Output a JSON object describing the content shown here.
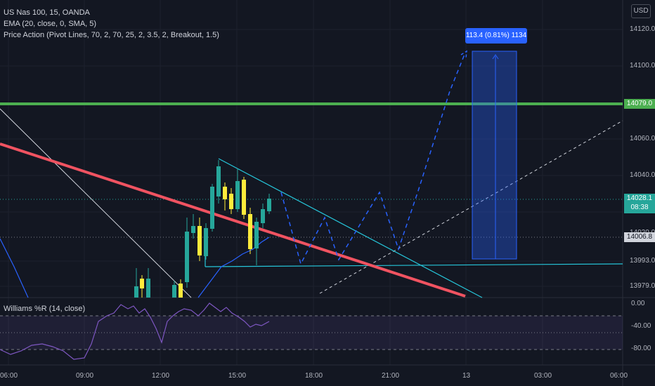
{
  "legend": {
    "symbol": "US Nas 100, 15, OANDA",
    "ema": "EMA (20, close, 0, SMA, 5)",
    "price_action": "Price Action (Pivot Lines, 70, 2, 70, 25, 2, 3.5, 2, Breakout, 1.5)"
  },
  "currency": "USD",
  "price_axis": [
    "14120.0",
    "14100.0",
    "14060.0",
    "14040.0",
    "14020.0",
    "13993.0",
    "13979.0"
  ],
  "price_tags": {
    "green_line": "14079.0",
    "current_price": "14028.1",
    "countdown": "08:38",
    "pivot": "14006.8"
  },
  "measure_label": "113.4 (0.81%) 1134",
  "williams": {
    "label": "Williams %R (14, close)",
    "axis": [
      "0.00",
      "-40.00",
      "-80.00"
    ]
  },
  "time_axis": [
    "06:00",
    "09:00",
    "12:00",
    "15:00",
    "18:00",
    "21:00",
    "13",
    "03:00",
    "06:00"
  ],
  "colors": {
    "bull": "#26a69a",
    "bear": "#ffeb3b",
    "resistance": "#4caf50",
    "trendline": "#f05361",
    "projection": "#2962ff",
    "triangle": "#26c6da"
  }
}
